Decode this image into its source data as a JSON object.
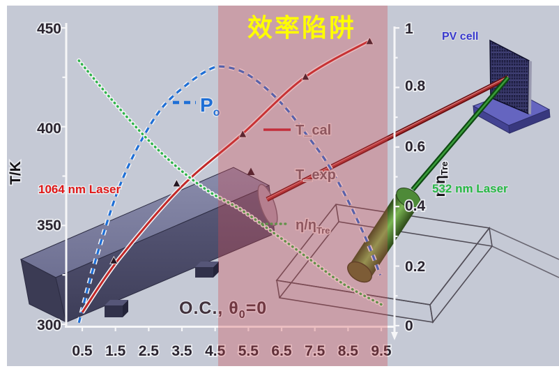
{
  "title": "效率陷阱",
  "axes": {
    "left": {
      "label": "T/K",
      "ticks": [
        "450",
        "400",
        "350",
        "300"
      ]
    },
    "right": {
      "label_main": "η/η",
      "label_sub": "Tre",
      "ticks": [
        "1",
        "0.8",
        "0.6",
        "0.4",
        "0.2",
        "0"
      ]
    },
    "x": {
      "ticks": [
        "0.5",
        "1.5",
        "2.5",
        "3.5",
        "4.5",
        "5.5",
        "6.5",
        "7.5",
        "8.5",
        "9.5"
      ]
    }
  },
  "legend": {
    "po_main": "P",
    "po_sub": "o",
    "t_cal": "T_cal",
    "t_exp": "T_exp",
    "eta_main": "η/η",
    "eta_sub": "Tre"
  },
  "annotations": {
    "oc_main": "O.C., θ",
    "oc_sub": "0",
    "oc_tail": "=0",
    "laser_1064": "1064 nm Laser",
    "laser_532": "532 nm Laser",
    "pv_cell": "PV cell"
  },
  "colors": {
    "background": "#c5c9d5",
    "trap_overlay": "rgba(212,72,78,0.32)",
    "title_yellow": "#ffff00",
    "po_blue": "#1e6fd6",
    "tcal_red": "#c22828",
    "eta_green": "#2eb44a",
    "laser1064_red": "#e01818",
    "laser532_green": "#28b845",
    "pv_blue": "#3a3ace"
  },
  "chart_data": {
    "type": "line",
    "x_axis": {
      "range": [
        0.5,
        9.5
      ],
      "ticks": [
        0.5,
        1.5,
        2.5,
        3.5,
        4.5,
        5.5,
        6.5,
        7.5,
        8.5,
        9.5
      ]
    },
    "left_y_axis": {
      "label": "T/K",
      "range": [
        300,
        450
      ],
      "ticks": [
        300,
        350,
        400,
        450
      ]
    },
    "right_y_axis": {
      "label": "η/η_Tre",
      "range": [
        0,
        1
      ],
      "ticks": [
        0,
        0.2,
        0.4,
        0.6,
        0.8,
        1
      ]
    },
    "highlight_region": {
      "label": "效率陷阱",
      "x_from": 4.6,
      "x_to": 9.7
    },
    "condition_label": "O.C., θ0=0",
    "series": [
      {
        "name": "P_o",
        "axis": "right",
        "style": "dashed",
        "color": "#1e6fd6",
        "width": 3.2,
        "points": [
          [
            0.4,
            0.01
          ],
          [
            0.75,
            0.16
          ],
          [
            1.17,
            0.32
          ],
          [
            1.63,
            0.47
          ],
          [
            2.22,
            0.61
          ],
          [
            2.89,
            0.73
          ],
          [
            3.65,
            0.81
          ],
          [
            4.32,
            0.86
          ],
          [
            4.74,
            0.87
          ],
          [
            5.37,
            0.85
          ],
          [
            6.0,
            0.8
          ],
          [
            6.63,
            0.73
          ],
          [
            7.26,
            0.64
          ],
          [
            7.85,
            0.55
          ],
          [
            8.36,
            0.45
          ],
          [
            8.8,
            0.35
          ],
          [
            9.16,
            0.26
          ],
          [
            9.47,
            0.17
          ]
        ]
      },
      {
        "name": "T_cal",
        "axis": "left",
        "style": "solid",
        "color": "#c22828",
        "width": 3,
        "points": [
          [
            0.5,
            306
          ],
          [
            1.6,
            333
          ],
          [
            3.45,
            369
          ],
          [
            5.3,
            396
          ],
          [
            7.2,
            425
          ],
          [
            9.2,
            444
          ]
        ]
      },
      {
        "name": "T_exp",
        "axis": "left",
        "style": "scatter-triangle",
        "color": "#241722",
        "points": [
          [
            1.45,
            332
          ],
          [
            3.34,
            371
          ],
          [
            5.33,
            396
          ],
          [
            7.22,
            425
          ],
          [
            9.15,
            443
          ]
        ]
      },
      {
        "name": "η/η_Tre",
        "axis": "right",
        "style": "dotted",
        "color": "#2eb44a",
        "width": 3.4,
        "points": [
          [
            0.4,
            0.89
          ],
          [
            1.38,
            0.76
          ],
          [
            2.43,
            0.63
          ],
          [
            3.38,
            0.53
          ],
          [
            4.32,
            0.45
          ],
          [
            5.27,
            0.39
          ],
          [
            6.28,
            0.31
          ],
          [
            7.26,
            0.23
          ],
          [
            8.36,
            0.14
          ],
          [
            9.52,
            0.07
          ]
        ]
      }
    ]
  }
}
